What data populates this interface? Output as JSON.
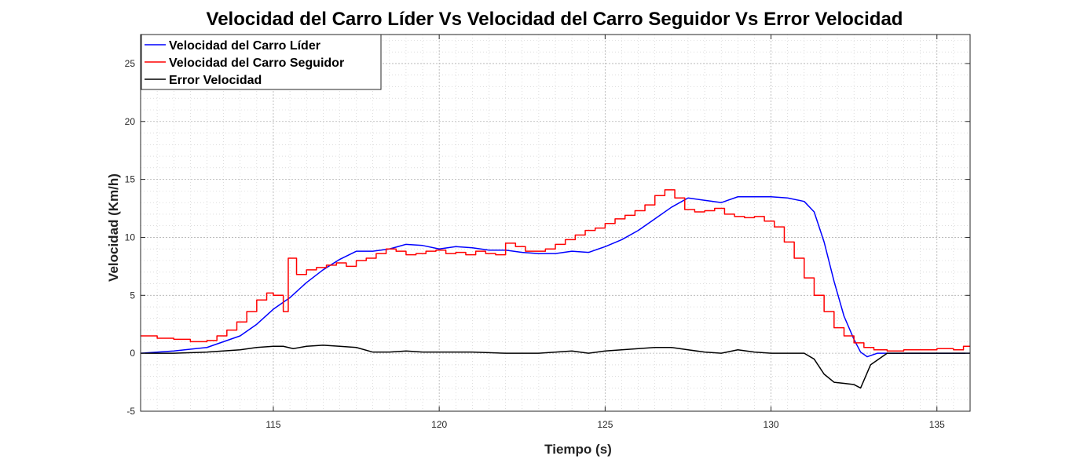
{
  "chart_data": {
    "type": "line",
    "title": "Velocidad del Carro Líder Vs Velocidad del Carro Seguidor Vs Error Velocidad",
    "xlabel": "Tiempo (s)",
    "ylabel": "Velocidad (Km/h)",
    "xlim": [
      111,
      136
    ],
    "ylim": [
      -5,
      27.5
    ],
    "xticks": [
      115,
      120,
      125,
      130,
      135
    ],
    "yticks": [
      -5,
      0,
      5,
      10,
      15,
      20,
      25
    ],
    "grid": "major and minor, dotted",
    "legend_position": "top-left",
    "series": [
      {
        "name": "Velocidad del Carro Líder",
        "color": "#0000ff",
        "step": false,
        "x": [
          111,
          112,
          113,
          114,
          114.5,
          115,
          115.5,
          116,
          116.5,
          117,
          117.5,
          118,
          118.5,
          119,
          119.5,
          120,
          120.5,
          121,
          121.5,
          122,
          122.5,
          123,
          123.5,
          124,
          124.5,
          125,
          125.5,
          126,
          126.5,
          127,
          127.5,
          128,
          128.5,
          129,
          129.5,
          130,
          130.5,
          131,
          131.3,
          131.6,
          131.9,
          132.2,
          132.5,
          132.7,
          132.9,
          133.2,
          134,
          135,
          136
        ],
        "y": [
          0,
          0.2,
          0.5,
          1.5,
          2.5,
          3.8,
          4.8,
          6.1,
          7.2,
          8.1,
          8.8,
          8.8,
          9.0,
          9.4,
          9.3,
          9.0,
          9.2,
          9.1,
          8.9,
          8.9,
          8.7,
          8.6,
          8.6,
          8.8,
          8.7,
          9.2,
          9.8,
          10.6,
          11.6,
          12.6,
          13.4,
          13.2,
          13.0,
          13.5,
          13.5,
          13.5,
          13.4,
          13.1,
          12.2,
          9.6,
          6.2,
          3.2,
          1.2,
          0.1,
          -0.3,
          0,
          0,
          0,
          0
        ]
      },
      {
        "name": "Velocidad del Carro Seguidor",
        "color": "#ff0000",
        "step": true,
        "x": [
          111,
          111.5,
          112,
          112.5,
          113,
          113.3,
          113.6,
          113.9,
          114.2,
          114.5,
          114.8,
          115,
          115.3,
          115.45,
          115.7,
          116,
          116.3,
          116.6,
          116.9,
          117.2,
          117.5,
          117.8,
          118.1,
          118.4,
          118.7,
          119,
          119.3,
          119.6,
          119.9,
          120.2,
          120.5,
          120.8,
          121.1,
          121.4,
          121.7,
          122,
          122.3,
          122.6,
          122.9,
          123.2,
          123.5,
          123.8,
          124.1,
          124.4,
          124.7,
          125,
          125.3,
          125.6,
          125.9,
          126.2,
          126.5,
          126.8,
          127.1,
          127.4,
          127.7,
          128,
          128.3,
          128.6,
          128.9,
          129.2,
          129.5,
          129.8,
          130.1,
          130.4,
          130.7,
          131,
          131.3,
          131.6,
          131.9,
          132.2,
          132.5,
          132.8,
          133.1,
          133.5,
          134,
          134.5,
          135,
          135.5,
          135.8
        ],
        "y": [
          1.5,
          1.3,
          1.2,
          1.0,
          1.1,
          1.5,
          2.0,
          2.7,
          3.6,
          4.6,
          5.2,
          5.0,
          3.6,
          8.2,
          6.8,
          7.2,
          7.4,
          7.6,
          7.8,
          7.5,
          8.0,
          8.2,
          8.6,
          9.0,
          8.8,
          8.5,
          8.6,
          8.8,
          8.9,
          8.6,
          8.7,
          8.5,
          8.8,
          8.6,
          8.5,
          9.5,
          9.2,
          8.8,
          8.8,
          9.0,
          9.4,
          9.8,
          10.2,
          10.6,
          10.8,
          11.2,
          11.6,
          11.9,
          12.3,
          12.8,
          13.6,
          14.1,
          13.4,
          12.4,
          12.2,
          12.3,
          12.5,
          12.0,
          11.8,
          11.7,
          11.8,
          11.4,
          10.9,
          9.6,
          8.2,
          6.5,
          5.0,
          3.6,
          2.2,
          1.5,
          0.9,
          0.5,
          0.3,
          0.2,
          0.3,
          0.3,
          0.4,
          0.3,
          0.6
        ]
      },
      {
        "name": "Error Velocidad",
        "color": "#000000",
        "step": false,
        "x": [
          111,
          112,
          113,
          114,
          114.5,
          115,
          115.3,
          115.6,
          116,
          116.5,
          117,
          117.5,
          118,
          118.5,
          119,
          119.5,
          120,
          121,
          122,
          123,
          124,
          124.5,
          125,
          125.5,
          126,
          126.5,
          127,
          127.5,
          128,
          128.5,
          129,
          129.5,
          130,
          130.5,
          131,
          131.3,
          131.6,
          131.9,
          132.2,
          132.5,
          132.7,
          133,
          133.5,
          134,
          135,
          136
        ],
        "y": [
          0,
          0,
          0.1,
          0.3,
          0.5,
          0.6,
          0.6,
          0.4,
          0.6,
          0.7,
          0.6,
          0.5,
          0.1,
          0.1,
          0.2,
          0.1,
          0.1,
          0.1,
          0,
          0,
          0.2,
          0,
          0.2,
          0.3,
          0.4,
          0.5,
          0.5,
          0.3,
          0.1,
          0,
          0.3,
          0.1,
          0,
          0,
          0,
          -0.5,
          -1.8,
          -2.5,
          -2.6,
          -2.7,
          -3.0,
          -1.0,
          0,
          0,
          0,
          0
        ]
      }
    ]
  }
}
